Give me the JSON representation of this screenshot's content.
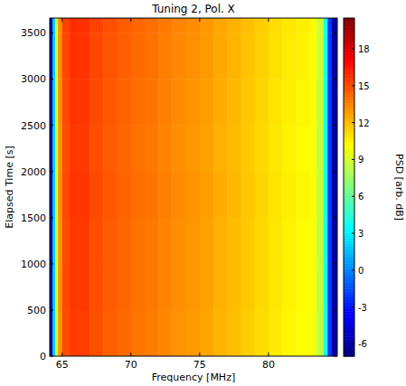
{
  "chart_data": {
    "type": "heatmap",
    "title": "Tuning 2, Pol. X",
    "x_label": "Frequency [MHz]",
    "y_label": "Elapsed Time [s]",
    "color_label": "PSD [arb. dB]",
    "xlim": [
      64.1,
      85.0
    ],
    "ylim": [
      0,
      3660
    ],
    "xticks": [
      65,
      70,
      75,
      80
    ],
    "yticks": [
      0,
      500,
      1000,
      1500,
      2000,
      2500,
      3000,
      3500
    ],
    "x_edges": [
      64.1,
      64.3,
      64.5,
      64.7,
      65,
      65.5,
      66,
      67,
      68,
      69,
      70,
      71,
      72,
      73,
      74,
      75,
      76,
      77,
      78,
      79,
      80,
      81,
      82,
      83,
      83.5,
      84,
      84.3,
      84.6,
      85
    ],
    "y_edges": [
      0,
      500,
      1000,
      1500,
      2000,
      2500,
      3000,
      3500,
      3660
    ],
    "values": [
      [
        -6,
        2,
        9,
        13,
        15,
        15.5,
        15.4,
        14.9,
        14.5,
        14.2,
        13.9,
        13.7,
        13.4,
        13.1,
        12.9,
        12.6,
        12.2,
        11.9,
        11.5,
        11.1,
        10.7,
        10.4,
        10.2,
        9.9,
        8.4,
        4,
        -2,
        -6
      ],
      [
        -6,
        2,
        9,
        13.1,
        15.1,
        15.6,
        15.5,
        15,
        14.6,
        14.3,
        14,
        13.8,
        13.5,
        13.2,
        13,
        12.7,
        12.3,
        12,
        11.6,
        11.2,
        10.8,
        10.5,
        10.3,
        10,
        8.5,
        4,
        -2,
        -6
      ],
      [
        -6,
        2,
        9,
        13,
        15,
        15.6,
        15.5,
        15,
        14.6,
        14.3,
        14,
        13.8,
        13.5,
        13.2,
        13,
        12.7,
        12.3,
        12,
        11.6,
        11.2,
        10.8,
        10.5,
        10.3,
        10,
        8.5,
        4,
        -2,
        -6
      ],
      [
        -6,
        2,
        9,
        13.1,
        15.1,
        15.7,
        15.6,
        15.1,
        14.7,
        14.4,
        14.1,
        13.9,
        13.6,
        13.3,
        13.1,
        12.8,
        12.4,
        12.1,
        11.7,
        11.3,
        10.9,
        10.6,
        10.4,
        10.1,
        8.6,
        4,
        -2,
        -6
      ],
      [
        -6,
        2,
        9,
        13,
        15,
        15.6,
        15.5,
        15,
        14.6,
        14.3,
        14,
        13.8,
        13.5,
        13.2,
        13,
        12.7,
        12.3,
        12,
        11.6,
        11.2,
        10.8,
        10.5,
        10.3,
        10,
        8.5,
        4,
        -2,
        -6
      ],
      [
        -6,
        2,
        9,
        13.1,
        15.1,
        15.7,
        15.6,
        15.1,
        14.7,
        14.4,
        14.1,
        13.9,
        13.6,
        13.3,
        13.1,
        12.8,
        12.4,
        12.1,
        11.7,
        11.3,
        10.9,
        10.6,
        10.4,
        10.1,
        8.6,
        4,
        -2,
        -6
      ],
      [
        -6,
        2,
        9,
        13.2,
        15.2,
        15.8,
        15.7,
        15.2,
        14.8,
        14.5,
        14.2,
        14,
        13.7,
        13.4,
        13.2,
        12.9,
        12.5,
        12.2,
        11.8,
        11.4,
        11,
        10.7,
        10.5,
        10.2,
        8.7,
        4,
        -2,
        -6
      ],
      [
        -6,
        2,
        9,
        13.2,
        15.3,
        15.9,
        15.8,
        15.3,
        14.9,
        14.6,
        14.3,
        14.1,
        13.8,
        13.5,
        13.3,
        13,
        12.6,
        12.3,
        11.9,
        11.5,
        11.1,
        10.8,
        10.6,
        10.3,
        8.8,
        4,
        -2,
        -6
      ]
    ],
    "color_range": [
      -7,
      20.5
    ],
    "color_ticks": [
      -6,
      -3,
      0,
      3,
      6,
      9,
      12,
      15,
      18
    ]
  }
}
